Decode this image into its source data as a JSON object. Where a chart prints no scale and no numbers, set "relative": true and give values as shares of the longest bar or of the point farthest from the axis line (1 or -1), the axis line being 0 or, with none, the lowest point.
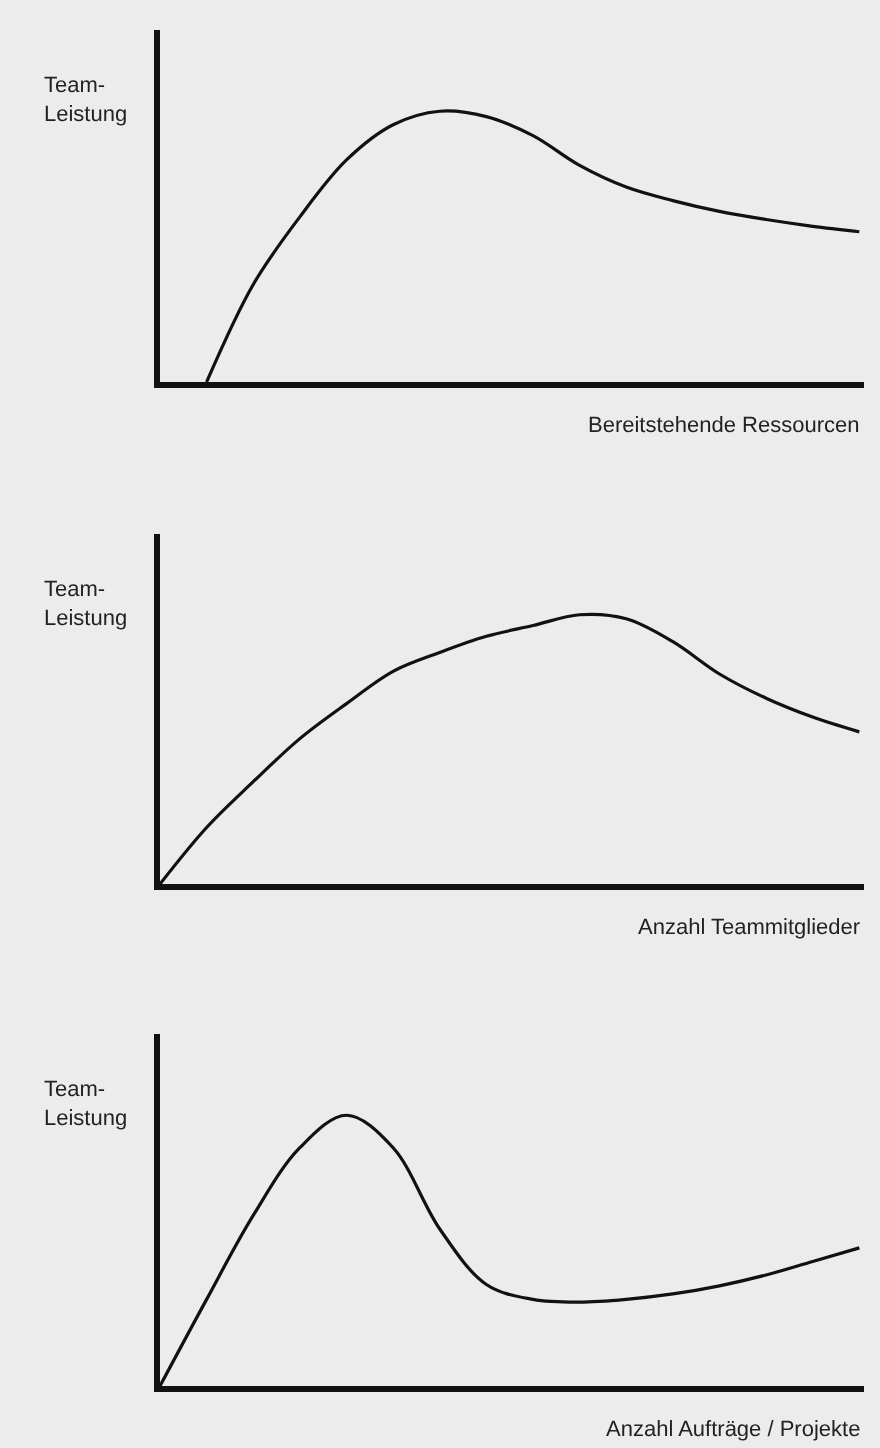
{
  "chart_data": [
    {
      "type": "line",
      "relative": true,
      "ylabel": "Team-\nLeistung",
      "xlabel": "Bereitstehende Ressourcen",
      "color": "#111111",
      "grid": false,
      "categories": [
        null,
        null,
        null,
        null,
        null,
        null,
        null,
        null,
        null,
        null,
        null,
        null,
        null,
        null,
        null,
        null
      ],
      "values": [
        null,
        0,
        0.36,
        0.61,
        0.82,
        0.95,
        1.0,
        0.98,
        0.91,
        0.8,
        0.72,
        0.67,
        0.63,
        0.6,
        0.575,
        0.555
      ]
    },
    {
      "type": "line",
      "relative": true,
      "ylabel": "Team-\nLeistung",
      "xlabel": "Anzahl Teammitglieder",
      "color": "#111111",
      "grid": false,
      "categories": [
        null,
        null,
        null,
        null,
        null,
        null,
        null,
        null,
        null,
        null,
        null,
        null,
        null,
        null,
        null,
        null
      ],
      "values": [
        0,
        0.21,
        0.38,
        0.54,
        0.67,
        0.79,
        0.86,
        0.92,
        0.96,
        1.0,
        0.985,
        0.9,
        0.78,
        0.69,
        0.62,
        0.565
      ]
    },
    {
      "type": "line",
      "relative": true,
      "ylabel": "Team-\nLeistung",
      "xlabel": "Anzahl Aufträge / Projekte",
      "color": "#111111",
      "grid": false,
      "categories": [
        null,
        null,
        null,
        null,
        null,
        null,
        null,
        null,
        null,
        null,
        null,
        null,
        null,
        null,
        null,
        null
      ],
      "values": [
        0,
        0.32,
        0.63,
        0.88,
        1.0,
        0.88,
        0.58,
        0.375,
        0.32,
        0.31,
        0.32,
        0.34,
        0.37,
        0.41,
        0.46,
        0.51
      ]
    }
  ]
}
